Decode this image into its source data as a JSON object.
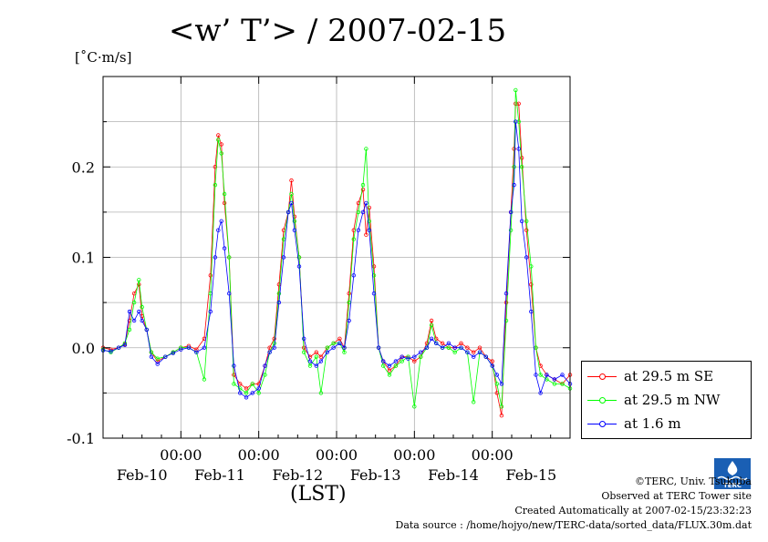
{
  "title": "<w’ T’> / 2007-02-15",
  "units": "[˚C·m/s]",
  "xaxis_label": "(LST)",
  "credits": {
    "line1": "©TERC, Univ. Tsukuba",
    "line2": "Observed at TERC Tower site",
    "line3": "Created Automatically at 2007-02-15/23:32:23",
    "line4": "Data source : /home/hojyo/new/TERC-data/sorted_data/FLUX.30m.dat"
  },
  "logo_text": "TERC",
  "chart_data": {
    "type": "line",
    "title": "<w’ T’> / 2007-02-15",
    "ylabel": "[˚C·m/s]",
    "xlabel": "(LST)",
    "xlim": [
      0,
      6
    ],
    "ylim": [
      -0.1,
      0.3
    ],
    "yticks": [
      -0.1,
      0.0,
      0.1,
      0.2
    ],
    "ytick_labels": [
      "-0.1",
      "0.0",
      "0.1",
      "0.2"
    ],
    "xticks": [
      1,
      2,
      3,
      4,
      5
    ],
    "xtick_time_label": "00:00",
    "day_labels": [
      "Feb-10",
      "Feb-11",
      "Feb-12",
      "Feb-13",
      "Feb-14",
      "Feb-15"
    ],
    "grid": true,
    "legend_position": "outside-right-bottom",
    "series": [
      {
        "name": "at 29.5 m SE",
        "color": "#ff0000",
        "points": [
          [
            0.0,
            0.0
          ],
          [
            0.1,
            -0.002
          ],
          [
            0.2,
            0.0
          ],
          [
            0.28,
            0.004
          ],
          [
            0.34,
            0.03
          ],
          [
            0.4,
            0.06
          ],
          [
            0.46,
            0.07
          ],
          [
            0.5,
            0.035
          ],
          [
            0.56,
            0.02
          ],
          [
            0.62,
            -0.005
          ],
          [
            0.7,
            -0.015
          ],
          [
            0.8,
            -0.01
          ],
          [
            0.9,
            -0.005
          ],
          [
            1.0,
            0.0
          ],
          [
            1.1,
            0.002
          ],
          [
            1.2,
            -0.002
          ],
          [
            1.3,
            0.01
          ],
          [
            1.38,
            0.08
          ],
          [
            1.44,
            0.2
          ],
          [
            1.48,
            0.235
          ],
          [
            1.52,
            0.225
          ],
          [
            1.56,
            0.16
          ],
          [
            1.62,
            0.1
          ],
          [
            1.68,
            -0.03
          ],
          [
            1.76,
            -0.04
          ],
          [
            1.84,
            -0.045
          ],
          [
            1.92,
            -0.04
          ],
          [
            2.0,
            -0.04
          ],
          [
            2.08,
            -0.02
          ],
          [
            2.14,
            0.0
          ],
          [
            2.2,
            0.01
          ],
          [
            2.26,
            0.07
          ],
          [
            2.32,
            0.13
          ],
          [
            2.38,
            0.15
          ],
          [
            2.42,
            0.185
          ],
          [
            2.46,
            0.145
          ],
          [
            2.52,
            0.1
          ],
          [
            2.58,
            0.0
          ],
          [
            2.66,
            -0.01
          ],
          [
            2.74,
            -0.005
          ],
          [
            2.8,
            -0.01
          ],
          [
            2.88,
            0.0
          ],
          [
            2.96,
            0.005
          ],
          [
            3.04,
            0.01
          ],
          [
            3.1,
            0.0
          ],
          [
            3.16,
            0.06
          ],
          [
            3.22,
            0.13
          ],
          [
            3.28,
            0.16
          ],
          [
            3.34,
            0.175
          ],
          [
            3.38,
            0.125
          ],
          [
            3.42,
            0.155
          ],
          [
            3.48,
            0.09
          ],
          [
            3.54,
            0.0
          ],
          [
            3.6,
            -0.015
          ],
          [
            3.68,
            -0.025
          ],
          [
            3.76,
            -0.02
          ],
          [
            3.84,
            -0.01
          ],
          [
            3.92,
            -0.01
          ],
          [
            4.0,
            -0.015
          ],
          [
            4.08,
            -0.01
          ],
          [
            4.16,
            0.005
          ],
          [
            4.22,
            0.03
          ],
          [
            4.28,
            0.01
          ],
          [
            4.36,
            0.005
          ],
          [
            4.44,
            0.0
          ],
          [
            4.52,
            0.0
          ],
          [
            4.6,
            0.005
          ],
          [
            4.68,
            0.0
          ],
          [
            4.76,
            -0.005
          ],
          [
            4.84,
            0.0
          ],
          [
            4.92,
            -0.01
          ],
          [
            5.0,
            -0.015
          ],
          [
            5.06,
            -0.05
          ],
          [
            5.12,
            -0.075
          ],
          [
            5.18,
            0.05
          ],
          [
            5.24,
            0.15
          ],
          [
            5.28,
            0.22
          ],
          [
            5.3,
            0.27
          ],
          [
            5.34,
            0.27
          ],
          [
            5.38,
            0.21
          ],
          [
            5.44,
            0.13
          ],
          [
            5.5,
            0.07
          ],
          [
            5.56,
            0.0
          ],
          [
            5.62,
            -0.02
          ],
          [
            5.7,
            -0.03
          ],
          [
            5.8,
            -0.035
          ],
          [
            5.9,
            -0.04
          ],
          [
            6.0,
            -0.03
          ]
        ]
      },
      {
        "name": "at 29.5 m NW",
        "color": "#00ff00",
        "points": [
          [
            0.0,
            -0.002
          ],
          [
            0.1,
            -0.005
          ],
          [
            0.2,
            0.0
          ],
          [
            0.28,
            0.005
          ],
          [
            0.34,
            0.02
          ],
          [
            0.4,
            0.05
          ],
          [
            0.46,
            0.075
          ],
          [
            0.5,
            0.045
          ],
          [
            0.56,
            0.02
          ],
          [
            0.62,
            -0.005
          ],
          [
            0.7,
            -0.012
          ],
          [
            0.8,
            -0.01
          ],
          [
            0.9,
            -0.005
          ],
          [
            1.0,
            0.0
          ],
          [
            1.1,
            0.0
          ],
          [
            1.2,
            -0.005
          ],
          [
            1.3,
            -0.035
          ],
          [
            1.38,
            0.06
          ],
          [
            1.44,
            0.18
          ],
          [
            1.48,
            0.23
          ],
          [
            1.52,
            0.215
          ],
          [
            1.56,
            0.17
          ],
          [
            1.62,
            0.1
          ],
          [
            1.68,
            -0.04
          ],
          [
            1.76,
            -0.045
          ],
          [
            1.84,
            -0.05
          ],
          [
            1.92,
            -0.04
          ],
          [
            2.0,
            -0.05
          ],
          [
            2.08,
            -0.03
          ],
          [
            2.14,
            -0.005
          ],
          [
            2.2,
            0.005
          ],
          [
            2.26,
            0.06
          ],
          [
            2.32,
            0.12
          ],
          [
            2.38,
            0.15
          ],
          [
            2.42,
            0.17
          ],
          [
            2.46,
            0.14
          ],
          [
            2.52,
            0.1
          ],
          [
            2.58,
            -0.005
          ],
          [
            2.66,
            -0.02
          ],
          [
            2.74,
            -0.01
          ],
          [
            2.8,
            -0.05
          ],
          [
            2.88,
            0.0
          ],
          [
            2.96,
            0.005
          ],
          [
            3.04,
            0.005
          ],
          [
            3.1,
            -0.005
          ],
          [
            3.16,
            0.05
          ],
          [
            3.22,
            0.12
          ],
          [
            3.28,
            0.15
          ],
          [
            3.34,
            0.18
          ],
          [
            3.38,
            0.22
          ],
          [
            3.42,
            0.14
          ],
          [
            3.48,
            0.08
          ],
          [
            3.54,
            0.0
          ],
          [
            3.6,
            -0.02
          ],
          [
            3.68,
            -0.03
          ],
          [
            3.76,
            -0.02
          ],
          [
            3.84,
            -0.015
          ],
          [
            3.92,
            -0.01
          ],
          [
            4.0,
            -0.065
          ],
          [
            4.08,
            -0.01
          ],
          [
            4.16,
            0.0
          ],
          [
            4.22,
            0.025
          ],
          [
            4.28,
            0.005
          ],
          [
            4.36,
            0.0
          ],
          [
            4.44,
            0.0
          ],
          [
            4.52,
            -0.005
          ],
          [
            4.6,
            0.0
          ],
          [
            4.68,
            -0.005
          ],
          [
            4.76,
            -0.06
          ],
          [
            4.84,
            -0.005
          ],
          [
            4.92,
            -0.01
          ],
          [
            5.0,
            -0.02
          ],
          [
            5.06,
            -0.04
          ],
          [
            5.12,
            -0.065
          ],
          [
            5.18,
            0.03
          ],
          [
            5.24,
            0.13
          ],
          [
            5.28,
            0.2
          ],
          [
            5.3,
            0.285
          ],
          [
            5.34,
            0.25
          ],
          [
            5.38,
            0.2
          ],
          [
            5.44,
            0.14
          ],
          [
            5.5,
            0.09
          ],
          [
            5.56,
            0.0
          ],
          [
            5.62,
            -0.03
          ],
          [
            5.7,
            -0.035
          ],
          [
            5.8,
            -0.04
          ],
          [
            5.9,
            -0.04
          ],
          [
            6.0,
            -0.045
          ]
        ]
      },
      {
        "name": "at 1.6 m",
        "color": "#0000ff",
        "points": [
          [
            0.0,
            -0.003
          ],
          [
            0.1,
            -0.004
          ],
          [
            0.2,
            0.0
          ],
          [
            0.28,
            0.003
          ],
          [
            0.34,
            0.04
          ],
          [
            0.4,
            0.03
          ],
          [
            0.46,
            0.04
          ],
          [
            0.5,
            0.03
          ],
          [
            0.56,
            0.02
          ],
          [
            0.62,
            -0.01
          ],
          [
            0.7,
            -0.018
          ],
          [
            0.8,
            -0.01
          ],
          [
            0.9,
            -0.006
          ],
          [
            1.0,
            -0.002
          ],
          [
            1.1,
            0.0
          ],
          [
            1.2,
            -0.005
          ],
          [
            1.3,
            0.0
          ],
          [
            1.38,
            0.04
          ],
          [
            1.44,
            0.1
          ],
          [
            1.48,
            0.13
          ],
          [
            1.52,
            0.14
          ],
          [
            1.56,
            0.11
          ],
          [
            1.62,
            0.06
          ],
          [
            1.68,
            -0.02
          ],
          [
            1.76,
            -0.05
          ],
          [
            1.84,
            -0.055
          ],
          [
            1.92,
            -0.05
          ],
          [
            2.0,
            -0.045
          ],
          [
            2.08,
            -0.02
          ],
          [
            2.14,
            -0.005
          ],
          [
            2.2,
            0.0
          ],
          [
            2.26,
            0.05
          ],
          [
            2.32,
            0.1
          ],
          [
            2.38,
            0.15
          ],
          [
            2.42,
            0.16
          ],
          [
            2.46,
            0.13
          ],
          [
            2.52,
            0.09
          ],
          [
            2.58,
            0.01
          ],
          [
            2.66,
            -0.015
          ],
          [
            2.74,
            -0.02
          ],
          [
            2.8,
            -0.015
          ],
          [
            2.88,
            -0.005
          ],
          [
            2.96,
            0.0
          ],
          [
            3.04,
            0.005
          ],
          [
            3.1,
            0.0
          ],
          [
            3.16,
            0.03
          ],
          [
            3.22,
            0.08
          ],
          [
            3.28,
            0.13
          ],
          [
            3.34,
            0.15
          ],
          [
            3.38,
            0.16
          ],
          [
            3.42,
            0.13
          ],
          [
            3.48,
            0.06
          ],
          [
            3.54,
            0.0
          ],
          [
            3.6,
            -0.015
          ],
          [
            3.68,
            -0.02
          ],
          [
            3.76,
            -0.015
          ],
          [
            3.84,
            -0.01
          ],
          [
            3.92,
            -0.012
          ],
          [
            4.0,
            -0.01
          ],
          [
            4.08,
            -0.005
          ],
          [
            4.16,
            0.0
          ],
          [
            4.22,
            0.01
          ],
          [
            4.28,
            0.005
          ],
          [
            4.36,
            0.0
          ],
          [
            4.44,
            0.005
          ],
          [
            4.52,
            0.0
          ],
          [
            4.6,
            0.0
          ],
          [
            4.68,
            -0.005
          ],
          [
            4.76,
            -0.01
          ],
          [
            4.84,
            -0.005
          ],
          [
            4.92,
            -0.01
          ],
          [
            5.0,
            -0.02
          ],
          [
            5.06,
            -0.03
          ],
          [
            5.12,
            -0.04
          ],
          [
            5.18,
            0.06
          ],
          [
            5.24,
            0.15
          ],
          [
            5.28,
            0.18
          ],
          [
            5.3,
            0.25
          ],
          [
            5.34,
            0.22
          ],
          [
            5.38,
            0.14
          ],
          [
            5.44,
            0.1
          ],
          [
            5.5,
            0.04
          ],
          [
            5.56,
            -0.03
          ],
          [
            5.62,
            -0.05
          ],
          [
            5.7,
            -0.03
          ],
          [
            5.8,
            -0.035
          ],
          [
            5.9,
            -0.03
          ],
          [
            6.0,
            -0.04
          ]
        ]
      }
    ]
  }
}
